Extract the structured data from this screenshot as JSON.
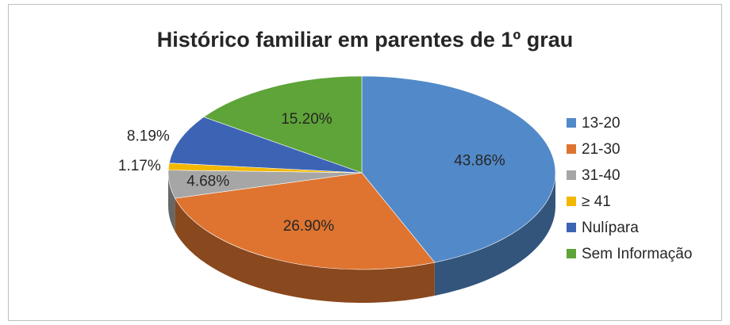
{
  "chart_data": {
    "type": "pie",
    "title": "Histórico familiar em parentes de 1º grau",
    "categories": [
      "13-20",
      "21-30",
      "31-40",
      "≥ 41",
      "Nulípara",
      "Sem Informação"
    ],
    "values": [
      43.86,
      26.9,
      4.68,
      1.17,
      8.19,
      15.2
    ],
    "value_labels": [
      "43.86%",
      "26.90%",
      "4.68%",
      "1.17%",
      "8.19%",
      "15.20%"
    ],
    "colors": [
      "#5289c8",
      "#de7430",
      "#a6a6a6",
      "#f2b800",
      "#3d64b4",
      "#5ea438"
    ],
    "legend": "right"
  }
}
